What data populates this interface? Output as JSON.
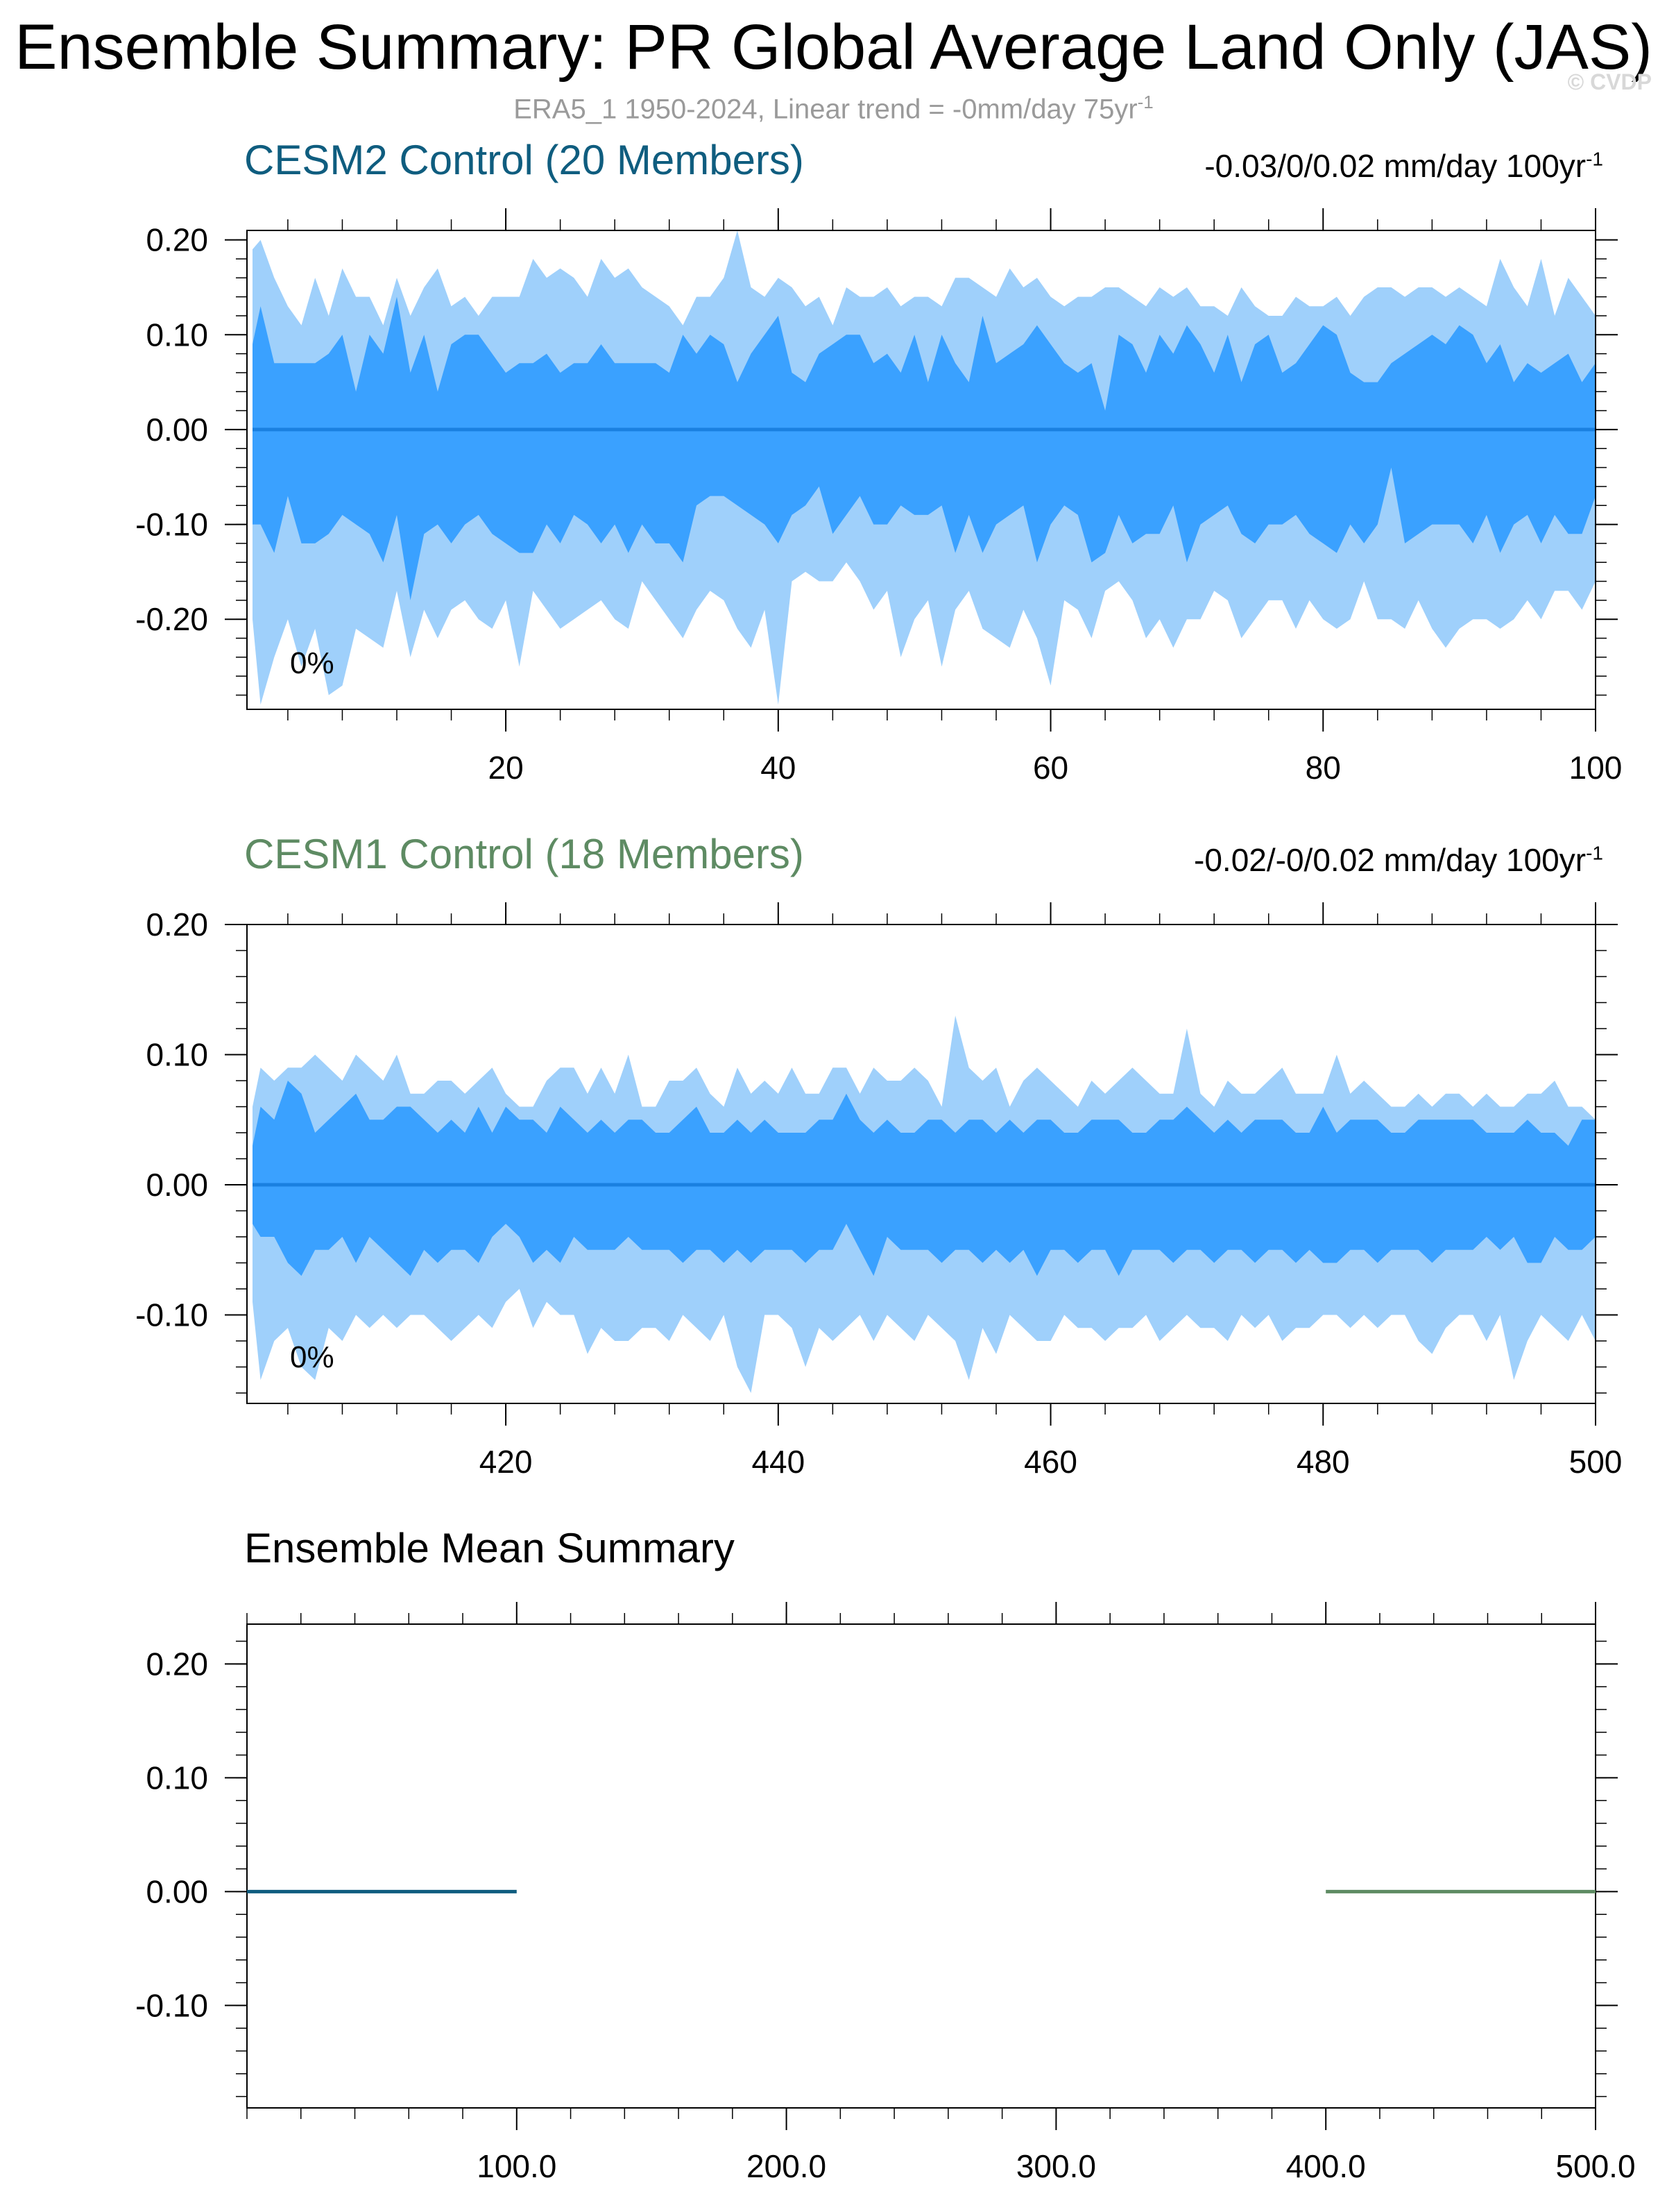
{
  "header": {
    "title": "Ensemble Summary: PR Global Average Land Only (JAS)",
    "subtitle": "ERA5_1 1950-2024, Linear trend = -0mm/day 75yr",
    "subtitle_sup": "-1",
    "watermark": "© CVDP"
  },
  "colors": {
    "outer_band": "#9fd0fb",
    "inner_band": "#3aa1ff",
    "median_line": "#1a80e0",
    "cesm2": "#0f5d7f",
    "cesm1": "#5e8b63",
    "axis": "#000000"
  },
  "panels": [
    {
      "title": "CESM2 Control (20 Members)",
      "stat": "-0.03/0/0.02 mm/day 100yr",
      "stat_sup": "-1",
      "percent_label": "0%"
    },
    {
      "title": "CESM1 Control (18 Members)",
      "stat": "-0.02/-0/0.02 mm/day 100yr",
      "stat_sup": "-1",
      "percent_label": "0%"
    },
    {
      "title": "Ensemble Mean Summary"
    }
  ],
  "chart_data": [
    {
      "type": "area",
      "title": "CESM2 Control (20 Members)",
      "xlim": [
        1,
        100
      ],
      "ylim": [
        -0.295,
        0.21
      ],
      "x_ticks": [
        20,
        40,
        60,
        80,
        100
      ],
      "y_ticks": [
        "0.20",
        "0.10",
        "0.00",
        "-0.10",
        "-0.20"
      ],
      "y_tick_values": [
        0.2,
        0.1,
        0.0,
        -0.1,
        -0.2
      ],
      "x_start": 1,
      "series": [
        {
          "values": [
            0.19,
            0.2,
            0.16,
            0.13,
            0.11,
            0.16,
            0.12,
            0.17,
            0.14,
            0.14,
            0.11,
            0.16,
            0.12,
            0.15,
            0.17,
            0.13,
            0.14,
            0.12,
            0.14,
            0.14,
            0.14,
            0.18,
            0.16,
            0.17,
            0.16,
            0.14,
            0.18,
            0.16,
            0.17,
            0.15,
            0.14,
            0.13,
            0.11,
            0.14,
            0.14,
            0.16,
            0.21,
            0.15,
            0.14,
            0.16,
            0.15,
            0.13,
            0.14,
            0.11,
            0.15,
            0.14,
            0.14,
            0.15,
            0.13,
            0.14,
            0.14,
            0.13,
            0.16,
            0.16,
            0.15,
            0.14,
            0.17,
            0.15,
            0.16,
            0.14,
            0.13,
            0.14,
            0.14,
            0.15,
            0.15,
            0.14,
            0.13,
            0.15,
            0.14,
            0.15,
            0.13,
            0.13,
            0.12,
            0.15,
            0.13,
            0.12,
            0.12,
            0.14,
            0.13,
            0.13,
            0.14,
            0.12,
            0.14,
            0.15,
            0.15,
            0.14,
            0.15,
            0.15,
            0.14,
            0.15,
            0.14,
            0.13,
            0.18,
            0.15,
            0.13,
            0.18,
            0.12,
            0.16,
            0.14,
            0.12
          ]
        },
        {
          "values": [
            0.09,
            0.13,
            0.07,
            0.07,
            0.07,
            0.07,
            0.08,
            0.1,
            0.04,
            0.1,
            0.08,
            0.14,
            0.06,
            0.1,
            0.04,
            0.09,
            0.1,
            0.1,
            0.08,
            0.06,
            0.07,
            0.07,
            0.08,
            0.06,
            0.07,
            0.07,
            0.09,
            0.07,
            0.07,
            0.07,
            0.07,
            0.06,
            0.1,
            0.08,
            0.1,
            0.09,
            0.05,
            0.08,
            0.1,
            0.12,
            0.06,
            0.05,
            0.08,
            0.09,
            0.1,
            0.1,
            0.07,
            0.08,
            0.06,
            0.1,
            0.05,
            0.1,
            0.07,
            0.05,
            0.12,
            0.07,
            0.08,
            0.09,
            0.11,
            0.09,
            0.07,
            0.06,
            0.07,
            0.02,
            0.1,
            0.09,
            0.06,
            0.1,
            0.08,
            0.11,
            0.09,
            0.06,
            0.1,
            0.05,
            0.09,
            0.1,
            0.06,
            0.07,
            0.09,
            0.11,
            0.1,
            0.06,
            0.05,
            0.05,
            0.07,
            0.08,
            0.09,
            0.1,
            0.09,
            0.11,
            0.1,
            0.07,
            0.09,
            0.05,
            0.07,
            0.06,
            0.07,
            0.08,
            0.05,
            0.07
          ]
        },
        {
          "values": [
            -0.1,
            -0.1,
            -0.13,
            -0.07,
            -0.12,
            -0.12,
            -0.11,
            -0.09,
            -0.1,
            -0.11,
            -0.14,
            -0.09,
            -0.18,
            -0.11,
            -0.1,
            -0.12,
            -0.1,
            -0.09,
            -0.11,
            -0.12,
            -0.13,
            -0.13,
            -0.1,
            -0.12,
            -0.09,
            -0.1,
            -0.12,
            -0.1,
            -0.13,
            -0.1,
            -0.12,
            -0.12,
            -0.14,
            -0.08,
            -0.07,
            -0.07,
            -0.08,
            -0.09,
            -0.1,
            -0.12,
            -0.09,
            -0.08,
            -0.06,
            -0.11,
            -0.09,
            -0.07,
            -0.1,
            -0.1,
            -0.08,
            -0.09,
            -0.09,
            -0.08,
            -0.13,
            -0.09,
            -0.13,
            -0.1,
            -0.09,
            -0.08,
            -0.14,
            -0.1,
            -0.08,
            -0.09,
            -0.14,
            -0.13,
            -0.09,
            -0.12,
            -0.11,
            -0.11,
            -0.08,
            -0.14,
            -0.1,
            -0.09,
            -0.08,
            -0.11,
            -0.12,
            -0.1,
            -0.1,
            -0.09,
            -0.11,
            -0.12,
            -0.13,
            -0.1,
            -0.12,
            -0.1,
            -0.04,
            -0.12,
            -0.11,
            -0.1,
            -0.1,
            -0.1,
            -0.12,
            -0.09,
            -0.13,
            -0.1,
            -0.09,
            -0.12,
            -0.09,
            -0.11,
            -0.11,
            -0.07
          ]
        },
        {
          "values": [
            -0.2,
            -0.29,
            -0.24,
            -0.2,
            -0.25,
            -0.21,
            -0.28,
            -0.27,
            -0.21,
            -0.22,
            -0.23,
            -0.17,
            -0.24,
            -0.19,
            -0.22,
            -0.19,
            -0.18,
            -0.2,
            -0.21,
            -0.18,
            -0.25,
            -0.17,
            -0.19,
            -0.21,
            -0.2,
            -0.19,
            -0.18,
            -0.2,
            -0.21,
            -0.16,
            -0.18,
            -0.2,
            -0.22,
            -0.19,
            -0.17,
            -0.18,
            -0.21,
            -0.23,
            -0.19,
            -0.29,
            -0.16,
            -0.15,
            -0.16,
            -0.16,
            -0.14,
            -0.16,
            -0.19,
            -0.17,
            -0.24,
            -0.2,
            -0.18,
            -0.25,
            -0.19,
            -0.17,
            -0.21,
            -0.22,
            -0.23,
            -0.19,
            -0.22,
            -0.27,
            -0.18,
            -0.19,
            -0.22,
            -0.17,
            -0.16,
            -0.18,
            -0.22,
            -0.2,
            -0.23,
            -0.2,
            -0.2,
            -0.17,
            -0.18,
            -0.22,
            -0.2,
            -0.18,
            -0.18,
            -0.21,
            -0.18,
            -0.2,
            -0.21,
            -0.2,
            -0.16,
            -0.2,
            -0.2,
            -0.21,
            -0.18,
            -0.21,
            -0.23,
            -0.21,
            -0.2,
            -0.2,
            -0.21,
            -0.2,
            -0.18,
            -0.2,
            -0.17,
            -0.17,
            -0.19,
            -0.16
          ]
        }
      ],
      "median": 0.0
    },
    {
      "type": "area",
      "title": "CESM1 Control (18 Members)",
      "xlim": [
        401,
        500
      ],
      "ylim": [
        -0.168,
        0.2
      ],
      "x_ticks": [
        420,
        440,
        460,
        480,
        500
      ],
      "y_ticks": [
        "0.20",
        "0.10",
        "0.00",
        "-0.10"
      ],
      "y_tick_values": [
        0.2,
        0.1,
        0.0,
        -0.1
      ],
      "x_start": 401,
      "series": [
        {
          "values": [
            0.06,
            0.09,
            0.08,
            0.09,
            0.09,
            0.1,
            0.09,
            0.08,
            0.1,
            0.09,
            0.08,
            0.1,
            0.07,
            0.07,
            0.08,
            0.08,
            0.07,
            0.08,
            0.09,
            0.07,
            0.06,
            0.06,
            0.08,
            0.09,
            0.09,
            0.07,
            0.09,
            0.07,
            0.1,
            0.06,
            0.06,
            0.08,
            0.08,
            0.09,
            0.07,
            0.06,
            0.09,
            0.07,
            0.08,
            0.07,
            0.09,
            0.07,
            0.07,
            0.09,
            0.09,
            0.07,
            0.09,
            0.08,
            0.08,
            0.09,
            0.08,
            0.06,
            0.13,
            0.09,
            0.08,
            0.09,
            0.06,
            0.08,
            0.09,
            0.08,
            0.07,
            0.06,
            0.08,
            0.07,
            0.08,
            0.09,
            0.08,
            0.07,
            0.07,
            0.12,
            0.07,
            0.06,
            0.08,
            0.07,
            0.07,
            0.08,
            0.09,
            0.07,
            0.07,
            0.07,
            0.1,
            0.07,
            0.08,
            0.07,
            0.06,
            0.06,
            0.07,
            0.06,
            0.07,
            0.07,
            0.06,
            0.07,
            0.06,
            0.06,
            0.07,
            0.07,
            0.08,
            0.06,
            0.06,
            0.05
          ]
        },
        {
          "values": [
            0.03,
            0.06,
            0.05,
            0.08,
            0.07,
            0.04,
            0.05,
            0.06,
            0.07,
            0.05,
            0.05,
            0.06,
            0.06,
            0.05,
            0.04,
            0.05,
            0.04,
            0.06,
            0.04,
            0.06,
            0.05,
            0.05,
            0.04,
            0.06,
            0.05,
            0.04,
            0.05,
            0.04,
            0.05,
            0.05,
            0.04,
            0.04,
            0.05,
            0.06,
            0.04,
            0.04,
            0.05,
            0.04,
            0.05,
            0.04,
            0.04,
            0.04,
            0.05,
            0.05,
            0.07,
            0.05,
            0.04,
            0.05,
            0.04,
            0.04,
            0.05,
            0.05,
            0.04,
            0.05,
            0.05,
            0.04,
            0.05,
            0.04,
            0.05,
            0.05,
            0.04,
            0.04,
            0.05,
            0.05,
            0.05,
            0.04,
            0.04,
            0.05,
            0.05,
            0.06,
            0.05,
            0.04,
            0.05,
            0.04,
            0.05,
            0.05,
            0.05,
            0.04,
            0.04,
            0.06,
            0.04,
            0.05,
            0.05,
            0.05,
            0.04,
            0.04,
            0.05,
            0.05,
            0.05,
            0.05,
            0.05,
            0.04,
            0.04,
            0.04,
            0.05,
            0.04,
            0.04,
            0.03,
            0.05,
            0.05
          ]
        },
        {
          "values": [
            -0.03,
            -0.04,
            -0.04,
            -0.06,
            -0.07,
            -0.05,
            -0.05,
            -0.04,
            -0.06,
            -0.04,
            -0.05,
            -0.06,
            -0.07,
            -0.05,
            -0.06,
            -0.05,
            -0.05,
            -0.06,
            -0.04,
            -0.03,
            -0.04,
            -0.06,
            -0.05,
            -0.06,
            -0.04,
            -0.05,
            -0.05,
            -0.05,
            -0.04,
            -0.05,
            -0.05,
            -0.05,
            -0.06,
            -0.05,
            -0.05,
            -0.06,
            -0.05,
            -0.06,
            -0.05,
            -0.05,
            -0.05,
            -0.06,
            -0.05,
            -0.05,
            -0.03,
            -0.05,
            -0.07,
            -0.04,
            -0.05,
            -0.05,
            -0.05,
            -0.06,
            -0.05,
            -0.05,
            -0.06,
            -0.05,
            -0.06,
            -0.05,
            -0.07,
            -0.05,
            -0.05,
            -0.06,
            -0.05,
            -0.05,
            -0.07,
            -0.05,
            -0.05,
            -0.05,
            -0.06,
            -0.05,
            -0.05,
            -0.06,
            -0.05,
            -0.05,
            -0.06,
            -0.05,
            -0.05,
            -0.06,
            -0.05,
            -0.06,
            -0.06,
            -0.05,
            -0.05,
            -0.06,
            -0.05,
            -0.05,
            -0.05,
            -0.06,
            -0.05,
            -0.05,
            -0.05,
            -0.04,
            -0.05,
            -0.04,
            -0.06,
            -0.06,
            -0.04,
            -0.05,
            -0.05,
            -0.04
          ]
        },
        {
          "values": [
            -0.09,
            -0.15,
            -0.12,
            -0.11,
            -0.14,
            -0.15,
            -0.11,
            -0.12,
            -0.1,
            -0.11,
            -0.1,
            -0.11,
            -0.1,
            -0.1,
            -0.11,
            -0.12,
            -0.11,
            -0.1,
            -0.11,
            -0.09,
            -0.08,
            -0.11,
            -0.09,
            -0.1,
            -0.1,
            -0.13,
            -0.11,
            -0.12,
            -0.12,
            -0.11,
            -0.11,
            -0.12,
            -0.1,
            -0.11,
            -0.12,
            -0.1,
            -0.14,
            -0.16,
            -0.1,
            -0.1,
            -0.11,
            -0.14,
            -0.11,
            -0.12,
            -0.11,
            -0.1,
            -0.12,
            -0.1,
            -0.11,
            -0.12,
            -0.1,
            -0.11,
            -0.12,
            -0.15,
            -0.11,
            -0.13,
            -0.1,
            -0.11,
            -0.12,
            -0.12,
            -0.1,
            -0.11,
            -0.11,
            -0.12,
            -0.11,
            -0.11,
            -0.1,
            -0.12,
            -0.11,
            -0.1,
            -0.11,
            -0.11,
            -0.12,
            -0.1,
            -0.11,
            -0.1,
            -0.12,
            -0.11,
            -0.11,
            -0.1,
            -0.1,
            -0.11,
            -0.1,
            -0.11,
            -0.1,
            -0.1,
            -0.12,
            -0.13,
            -0.11,
            -0.1,
            -0.1,
            -0.12,
            -0.1,
            -0.15,
            -0.12,
            -0.1,
            -0.11,
            -0.12,
            -0.1,
            -0.12
          ]
        }
      ],
      "median": 0.0
    },
    {
      "type": "line",
      "title": "Ensemble Mean Summary",
      "xlim": [
        0,
        500
      ],
      "ylim": [
        -0.19,
        0.235
      ],
      "x_ticks": [
        "100.0",
        "200.0",
        "300.0",
        "400.0",
        "500.0"
      ],
      "x_tick_values": [
        100,
        200,
        300,
        400,
        500
      ],
      "y_ticks": [
        "0.20",
        "0.10",
        "0.00",
        "-0.10"
      ],
      "y_tick_values": [
        0.2,
        0.1,
        0.0,
        -0.1
      ],
      "series": [
        {
          "x": [
            0,
            100
          ],
          "values": [
            0.0,
            0.0
          ],
          "color": "#0f5d7f"
        },
        {
          "x": [
            400,
            500
          ],
          "values": [
            0.0,
            0.0
          ],
          "color": "#5e8b63"
        }
      ]
    }
  ]
}
